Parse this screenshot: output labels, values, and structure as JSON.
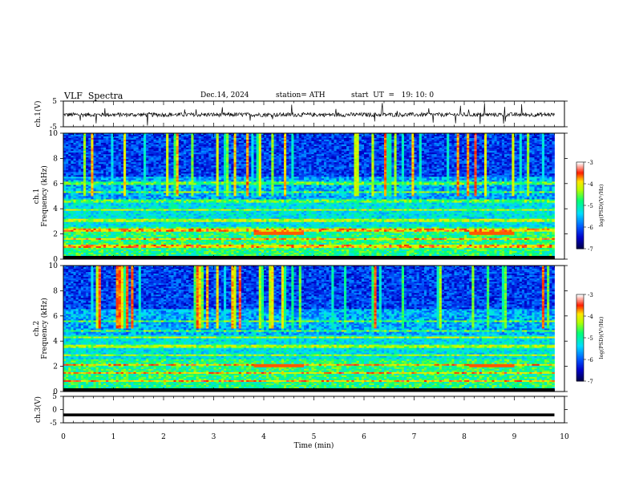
{
  "header": {
    "title": "VLF  Spectra",
    "date": "Dec.14, 2024",
    "station": "station= ATH",
    "start": "start  UT  =   19: 10: 0"
  },
  "chart_data": [
    {
      "type": "line",
      "panel": "ch1-waveform",
      "ylabel": "ch.1(V)",
      "ylim": [
        -5,
        5
      ],
      "yticks": [
        "5",
        "-5"
      ],
      "xlim": [
        0,
        10
      ],
      "series": [
        {
          "values_description": "noisy waveform around -0.3 V"
        }
      ]
    },
    {
      "type": "heatmap",
      "panel": "ch1-spectrogram",
      "ylabel_channel": "ch.1",
      "ylabel": "Frequency  (kHz)",
      "ylim": [
        0,
        10
      ],
      "yticks": [
        "0",
        "2",
        "4",
        "6",
        "8",
        "10"
      ],
      "xlim": [
        0,
        9.8
      ],
      "colorbar": {
        "label": "log(PSD)(V²/Hz)",
        "range": [
          -7,
          -3
        ],
        "ticks": [
          "-3",
          "-4",
          "-5",
          "-6",
          "-7"
        ]
      }
    },
    {
      "type": "heatmap",
      "panel": "ch2-spectrogram",
      "ylabel_channel": "ch.2",
      "ylabel": "Frequency  (kHz)",
      "ylim": [
        0,
        10
      ],
      "yticks": [
        "0",
        "2",
        "4",
        "6",
        "8",
        "10"
      ],
      "xlim": [
        0,
        9.8
      ],
      "colorbar": {
        "label": "log(PSD)(V²/Hz)",
        "range": [
          -7,
          -3
        ],
        "ticks": [
          "-3",
          "-4",
          "-5",
          "-6",
          "-7"
        ]
      }
    },
    {
      "type": "line",
      "panel": "ch3-waveform",
      "ylabel": "ch.3(V)",
      "ylim": [
        -5,
        5
      ],
      "yticks": [
        "5",
        "0",
        "-5"
      ],
      "xlim": [
        0,
        10
      ],
      "series": [
        {
          "values_description": "flat thick line at about -2 V"
        }
      ]
    }
  ],
  "xaxis": {
    "label": "Time  (min)",
    "range": [
      0,
      10
    ],
    "ticks": [
      "0",
      "1",
      "2",
      "3",
      "4",
      "5",
      "6",
      "7",
      "8",
      "9",
      "10"
    ]
  },
  "colors": {
    "colormap": [
      "#000066",
      "#0000ff",
      "#00c8ff",
      "#00ff66",
      "#ffff00",
      "#ff0000",
      "#ffffff"
    ]
  }
}
